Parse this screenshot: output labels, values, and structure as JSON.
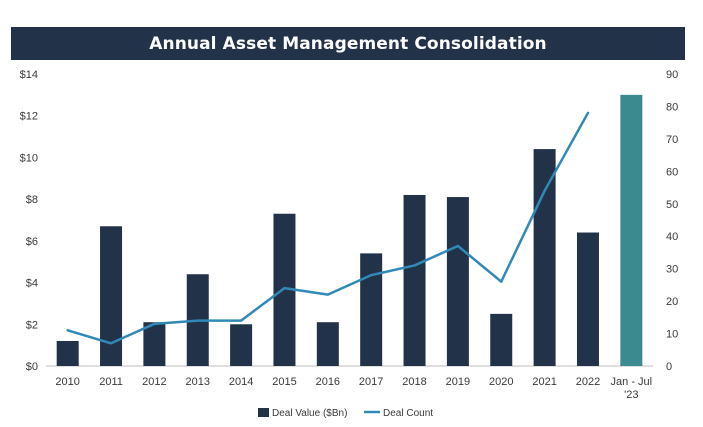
{
  "chart_data": {
    "type": "bar+line",
    "title": "Annual Asset Management Consolidation",
    "categories": [
      "2010",
      "2011",
      "2012",
      "2013",
      "2014",
      "2015",
      "2016",
      "2017",
      "2018",
      "2019",
      "2020",
      "2021",
      "2022",
      "Jan - Jul|'23"
    ],
    "series": [
      {
        "name": "Deal Value ($Bn)",
        "kind": "bar",
        "axis": "left",
        "values": [
          1.2,
          6.7,
          2.1,
          4.4,
          2.0,
          7.3,
          2.1,
          5.4,
          8.2,
          8.1,
          2.5,
          10.4,
          6.4,
          13.0
        ],
        "color": "#223349",
        "highlight_index": 13,
        "highlight_color": "#3a8a90"
      },
      {
        "name": "Deal Count",
        "kind": "line",
        "axis": "right",
        "values": [
          11,
          7,
          13,
          14,
          14,
          24,
          22,
          28,
          31,
          37,
          26,
          54,
          78,
          null
        ],
        "color": "#3189b8"
      }
    ],
    "left_axis": {
      "min": 0,
      "max": 14,
      "ticks": [
        "$0",
        "$2",
        "$4",
        "$6",
        "$8",
        "$10",
        "$12",
        "$14"
      ],
      "tick_values": [
        0,
        2,
        4,
        6,
        8,
        10,
        12,
        14
      ]
    },
    "right_axis": {
      "min": 0,
      "max": 90,
      "ticks": [
        "0",
        "10",
        "20",
        "30",
        "40",
        "50",
        "60",
        "70",
        "80",
        "90"
      ],
      "tick_values": [
        0,
        10,
        20,
        30,
        40,
        50,
        60,
        70,
        80,
        90
      ]
    },
    "legend": {
      "position": "bottom",
      "items": [
        "Deal Value ($Bn)",
        "Deal Count"
      ]
    },
    "grid": false
  }
}
